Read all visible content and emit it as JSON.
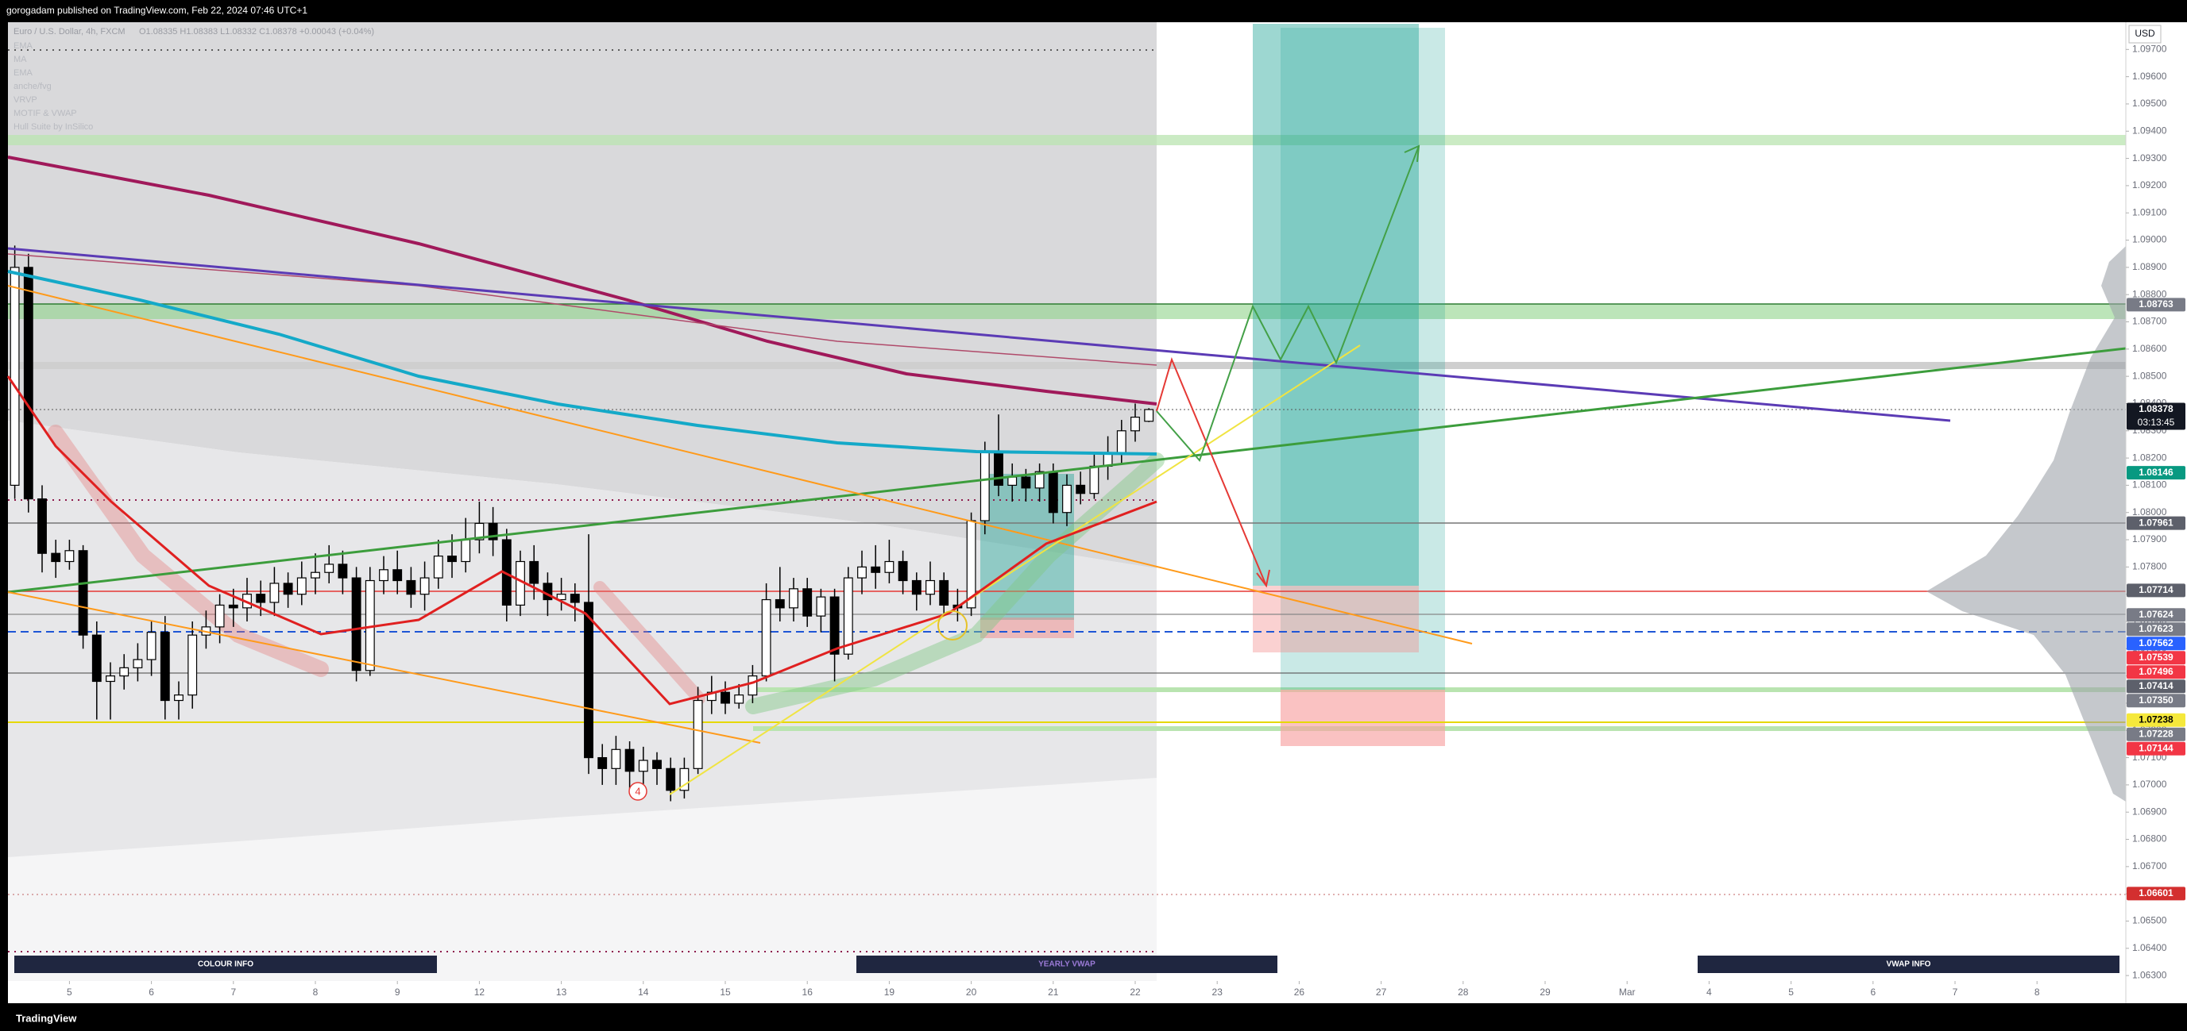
{
  "header": {
    "publisher": "gorogadam published on TradingView.com, Feb 22, 2024 07:46 UTC+1"
  },
  "chart_data": {
    "type": "candlestick",
    "title": "Euro / U.S. Dollar, 4h, FXCM",
    "ohlc_label": "O1.08335 H1.08383 L1.08332 C1.08378 +0.00043 (+0.04%)",
    "indicators": [
      "EMA",
      "MA",
      "EMA",
      "anche/fvg",
      "VRVP",
      "MOTIF & VWAP",
      "Hull Suite by InSilico"
    ],
    "currency": "USD",
    "up_color": "#ffffff",
    "down_color": "#000000",
    "open": [
      1.081,
      1.089,
      1.0805,
      1.0785,
      1.0782,
      1.0786,
      1.0755,
      1.0738,
      1.074,
      1.0743,
      1.0746,
      1.0756,
      1.0731,
      1.0733,
      1.0755,
      1.0758,
      1.0766,
      1.0765,
      1.077,
      1.0767,
      1.0774,
      1.077,
      1.0776,
      1.0778,
      1.0781,
      1.0776,
      1.0742,
      1.0775,
      1.0779,
      1.0775,
      1.077,
      1.0776,
      1.0784,
      1.0782,
      1.079,
      1.0796,
      1.079,
      1.0766,
      1.0782,
      1.0774,
      1.0768,
      1.077,
      1.0767,
      1.071,
      1.0706,
      1.0713,
      1.0705,
      1.0709,
      1.0706,
      1.0698,
      1.0706,
      1.0731,
      1.0734,
      1.073,
      1.0733,
      1.074,
      1.0768,
      1.0765,
      1.0772,
      1.0762,
      1.0769,
      1.0748,
      1.0776,
      1.078,
      1.0778,
      1.0782,
      1.0775,
      1.077,
      1.0775,
      1.0766,
      1.0765,
      1.0797,
      1.0822,
      1.081,
      1.0813,
      1.0809,
      1.0815,
      1.08,
      1.081,
      1.0807,
      1.0817,
      1.0822,
      1.083,
      1.08335
    ],
    "high": [
      1.0898,
      1.0895,
      1.081,
      1.079,
      1.079,
      1.0788,
      1.076,
      1.0745,
      1.0748,
      1.0752,
      1.076,
      1.0762,
      1.0738,
      1.076,
      1.0764,
      1.077,
      1.0772,
      1.0776,
      1.0775,
      1.078,
      1.0778,
      1.0782,
      1.0785,
      1.0788,
      1.0786,
      1.078,
      1.078,
      1.0784,
      1.0786,
      1.078,
      1.0782,
      1.079,
      1.0792,
      1.0798,
      1.0804,
      1.0802,
      1.0794,
      1.0786,
      1.0788,
      1.0778,
      1.0776,
      1.0774,
      1.0792,
      1.0715,
      1.0718,
      1.0716,
      1.0714,
      1.0712,
      1.071,
      1.071,
      1.0736,
      1.074,
      1.0738,
      1.0737,
      1.0744,
      1.0774,
      1.078,
      1.0776,
      1.0776,
      1.0772,
      1.0772,
      1.078,
      1.0786,
      1.0788,
      1.079,
      1.0786,
      1.0778,
      1.0782,
      1.0778,
      1.0772,
      1.08,
      1.0826,
      1.0836,
      1.0818,
      1.0816,
      1.0818,
      1.0818,
      1.0814,
      1.0815,
      1.0822,
      1.0828,
      1.0834,
      1.084,
      1.08383
    ],
    "low": [
      1.0805,
      1.08,
      1.0778,
      1.0776,
      1.0779,
      1.075,
      1.0724,
      1.0724,
      1.0735,
      1.0738,
      1.074,
      1.0724,
      1.0724,
      1.0728,
      1.075,
      1.0752,
      1.0758,
      1.076,
      1.0762,
      1.0762,
      1.0765,
      1.0766,
      1.077,
      1.0774,
      1.077,
      1.0738,
      1.074,
      1.077,
      1.077,
      1.0765,
      1.0764,
      1.0772,
      1.0776,
      1.0778,
      1.0785,
      1.0784,
      1.076,
      1.0762,
      1.0768,
      1.0762,
      1.0764,
      1.076,
      1.0704,
      1.07,
      1.07,
      1.0698,
      1.07,
      1.07,
      1.0694,
      1.0695,
      1.0704,
      1.0726,
      1.0726,
      1.0728,
      1.073,
      1.0738,
      1.076,
      1.076,
      1.0758,
      1.0756,
      1.0738,
      1.0746,
      1.077,
      1.0772,
      1.0774,
      1.077,
      1.0764,
      1.0766,
      1.0762,
      1.076,
      1.0762,
      1.0792,
      1.0806,
      1.0804,
      1.0804,
      1.0804,
      1.0796,
      1.0795,
      1.0803,
      1.0805,
      1.0812,
      1.0818,
      1.0826,
      1.08332
    ],
    "close": [
      1.089,
      1.0805,
      1.0785,
      1.0782,
      1.0786,
      1.0755,
      1.0738,
      1.074,
      1.0743,
      1.0746,
      1.0756,
      1.0731,
      1.0733,
      1.0755,
      1.0758,
      1.0766,
      1.0765,
      1.077,
      1.0767,
      1.0774,
      1.077,
      1.0776,
      1.0778,
      1.0781,
      1.0776,
      1.0742,
      1.0775,
      1.0779,
      1.0775,
      1.077,
      1.0776,
      1.0784,
      1.0782,
      1.079,
      1.0796,
      1.079,
      1.0766,
      1.0782,
      1.0774,
      1.0768,
      1.077,
      1.0767,
      1.071,
      1.0706,
      1.0713,
      1.0705,
      1.0709,
      1.0706,
      1.0698,
      1.0706,
      1.0731,
      1.0734,
      1.073,
      1.0733,
      1.074,
      1.0768,
      1.0765,
      1.0772,
      1.0762,
      1.0769,
      1.0748,
      1.0776,
      1.078,
      1.0778,
      1.0782,
      1.0775,
      1.077,
      1.0775,
      1.0766,
      1.0765,
      1.0797,
      1.0822,
      1.081,
      1.0813,
      1.0809,
      1.0815,
      1.08,
      1.081,
      1.0807,
      1.0817,
      1.0822,
      1.083,
      1.0835,
      1.08378
    ],
    "xlim": [
      -0.5,
      154.5
    ],
    "xticks": [
      {
        "value": 4,
        "label": "5"
      },
      {
        "value": 10,
        "label": "6"
      },
      {
        "value": 16,
        "label": "7"
      },
      {
        "value": 22,
        "label": "8"
      },
      {
        "value": 28,
        "label": "9"
      },
      {
        "value": 34,
        "label": "12"
      },
      {
        "value": 40,
        "label": "13"
      },
      {
        "value": 46,
        "label": "14"
      },
      {
        "value": 52,
        "label": "15"
      },
      {
        "value": 58,
        "label": "16"
      },
      {
        "value": 64,
        "label": "19"
      },
      {
        "value": 70,
        "label": "20"
      },
      {
        "value": 76,
        "label": "21"
      },
      {
        "value": 82,
        "label": "22"
      },
      {
        "value": 88,
        "label": "23"
      },
      {
        "value": 94,
        "label": "26"
      },
      {
        "value": 100,
        "label": "27"
      },
      {
        "value": 106,
        "label": "28"
      },
      {
        "value": 112,
        "label": "29"
      },
      {
        "value": 118,
        "label": "Mar"
      },
      {
        "value": 124,
        "label": "4"
      },
      {
        "value": 130,
        "label": "5"
      },
      {
        "value": 136,
        "label": "6"
      },
      {
        "value": 142,
        "label": "7"
      },
      {
        "value": 148,
        "label": "8"
      }
    ],
    "ylim": [
      1.0628,
      1.098
    ],
    "yticks": [
      {
        "value": 1.063,
        "label": "1.06300"
      },
      {
        "value": 1.064,
        "label": "1.06400"
      },
      {
        "value": 1.065,
        "label": "1.06500"
      },
      {
        "value": 1.066,
        "label": "1.06600"
      },
      {
        "value": 1.067,
        "label": "1.06700"
      },
      {
        "value": 1.068,
        "label": "1.06800"
      },
      {
        "value": 1.069,
        "label": "1.06900"
      },
      {
        "value": 1.07,
        "label": "1.07000"
      },
      {
        "value": 1.071,
        "label": "1.07100"
      },
      {
        "value": 1.072,
        "label": "1.07200"
      },
      {
        "value": 1.073,
        "label": "1.07300"
      },
      {
        "value": 1.074,
        "label": "1.07400"
      },
      {
        "value": 1.075,
        "label": "1.07500"
      },
      {
        "value": 1.076,
        "label": "1.07600"
      },
      {
        "value": 1.077,
        "label": "1.07700"
      },
      {
        "value": 1.078,
        "label": "1.07800"
      },
      {
        "value": 1.079,
        "label": "1.07900"
      },
      {
        "value": 1.08,
        "label": "1.08000"
      },
      {
        "value": 1.081,
        "label": "1.08100"
      },
      {
        "value": 1.082,
        "label": "1.08200"
      },
      {
        "value": 1.083,
        "label": "1.08300"
      },
      {
        "value": 1.084,
        "label": "1.08400"
      },
      {
        "value": 1.085,
        "label": "1.08500"
      },
      {
        "value": 1.086,
        "label": "1.08600"
      },
      {
        "value": 1.087,
        "label": "1.08700"
      },
      {
        "value": 1.088,
        "label": "1.08800"
      },
      {
        "value": 1.089,
        "label": "1.08900"
      },
      {
        "value": 1.09,
        "label": "1.09000"
      },
      {
        "value": 1.091,
        "label": "1.09100"
      },
      {
        "value": 1.092,
        "label": "1.09200"
      },
      {
        "value": 1.093,
        "label": "1.09300"
      },
      {
        "value": 1.094,
        "label": "1.09400"
      },
      {
        "value": 1.095,
        "label": "1.09500"
      },
      {
        "value": 1.096,
        "label": "1.09600"
      },
      {
        "value": 1.097,
        "label": "1.09700"
      }
    ],
    "price_tags": [
      {
        "value": 1.08763,
        "color": "#787b86",
        "text_color": "#ffffff"
      },
      {
        "value": 1.08378,
        "color": "#131722",
        "text_color": "#ffffff",
        "countdown": "03:13:45"
      },
      {
        "value": 1.08146,
        "color": "#089981",
        "text_color": "#ffffff"
      },
      {
        "value": 1.07961,
        "color": "#5d606b",
        "text_color": "#ffffff"
      },
      {
        "value": 1.07714,
        "color": "#5d606b",
        "text_color": "#ffffff"
      },
      {
        "value": 1.07624,
        "color": "#787b86",
        "text_color": "#ffffff"
      },
      {
        "value": 1.07623,
        "color": "#787b86",
        "text_color": "#ffffff"
      },
      {
        "value": 1.07562,
        "color": "#2962ff",
        "text_color": "#ffffff"
      },
      {
        "value": 1.07539,
        "color": "#f23645",
        "text_color": "#ffffff"
      },
      {
        "value": 1.07496,
        "color": "#f23645",
        "text_color": "#ffffff"
      },
      {
        "value": 1.07414,
        "color": "#5d606b",
        "text_color": "#ffffff"
      },
      {
        "value": 1.0735,
        "label": "1.07350",
        "color": "#787b86",
        "text_color": "#ffffff"
      },
      {
        "value": 1.07238,
        "color": "#f5e83b",
        "text_color": "#000000"
      },
      {
        "value": 1.07228,
        "color": "#787b86",
        "text_color": "#ffffff"
      },
      {
        "value": 1.07144,
        "color": "#f23645",
        "text_color": "#ffffff"
      },
      {
        "value": 1.06601,
        "color": "#d32f2f",
        "text_color": "#ffffff"
      }
    ],
    "annotations": [
      "4"
    ],
    "panels": [
      {
        "label": "COLOUR INFO",
        "color": "#ffffff"
      },
      {
        "label": "YEARLY VWAP",
        "color": "#9c7bd8"
      },
      {
        "label": "VWAP INFO",
        "color": "#ffffff"
      }
    ]
  },
  "footer": {
    "brand": "TradingView"
  }
}
